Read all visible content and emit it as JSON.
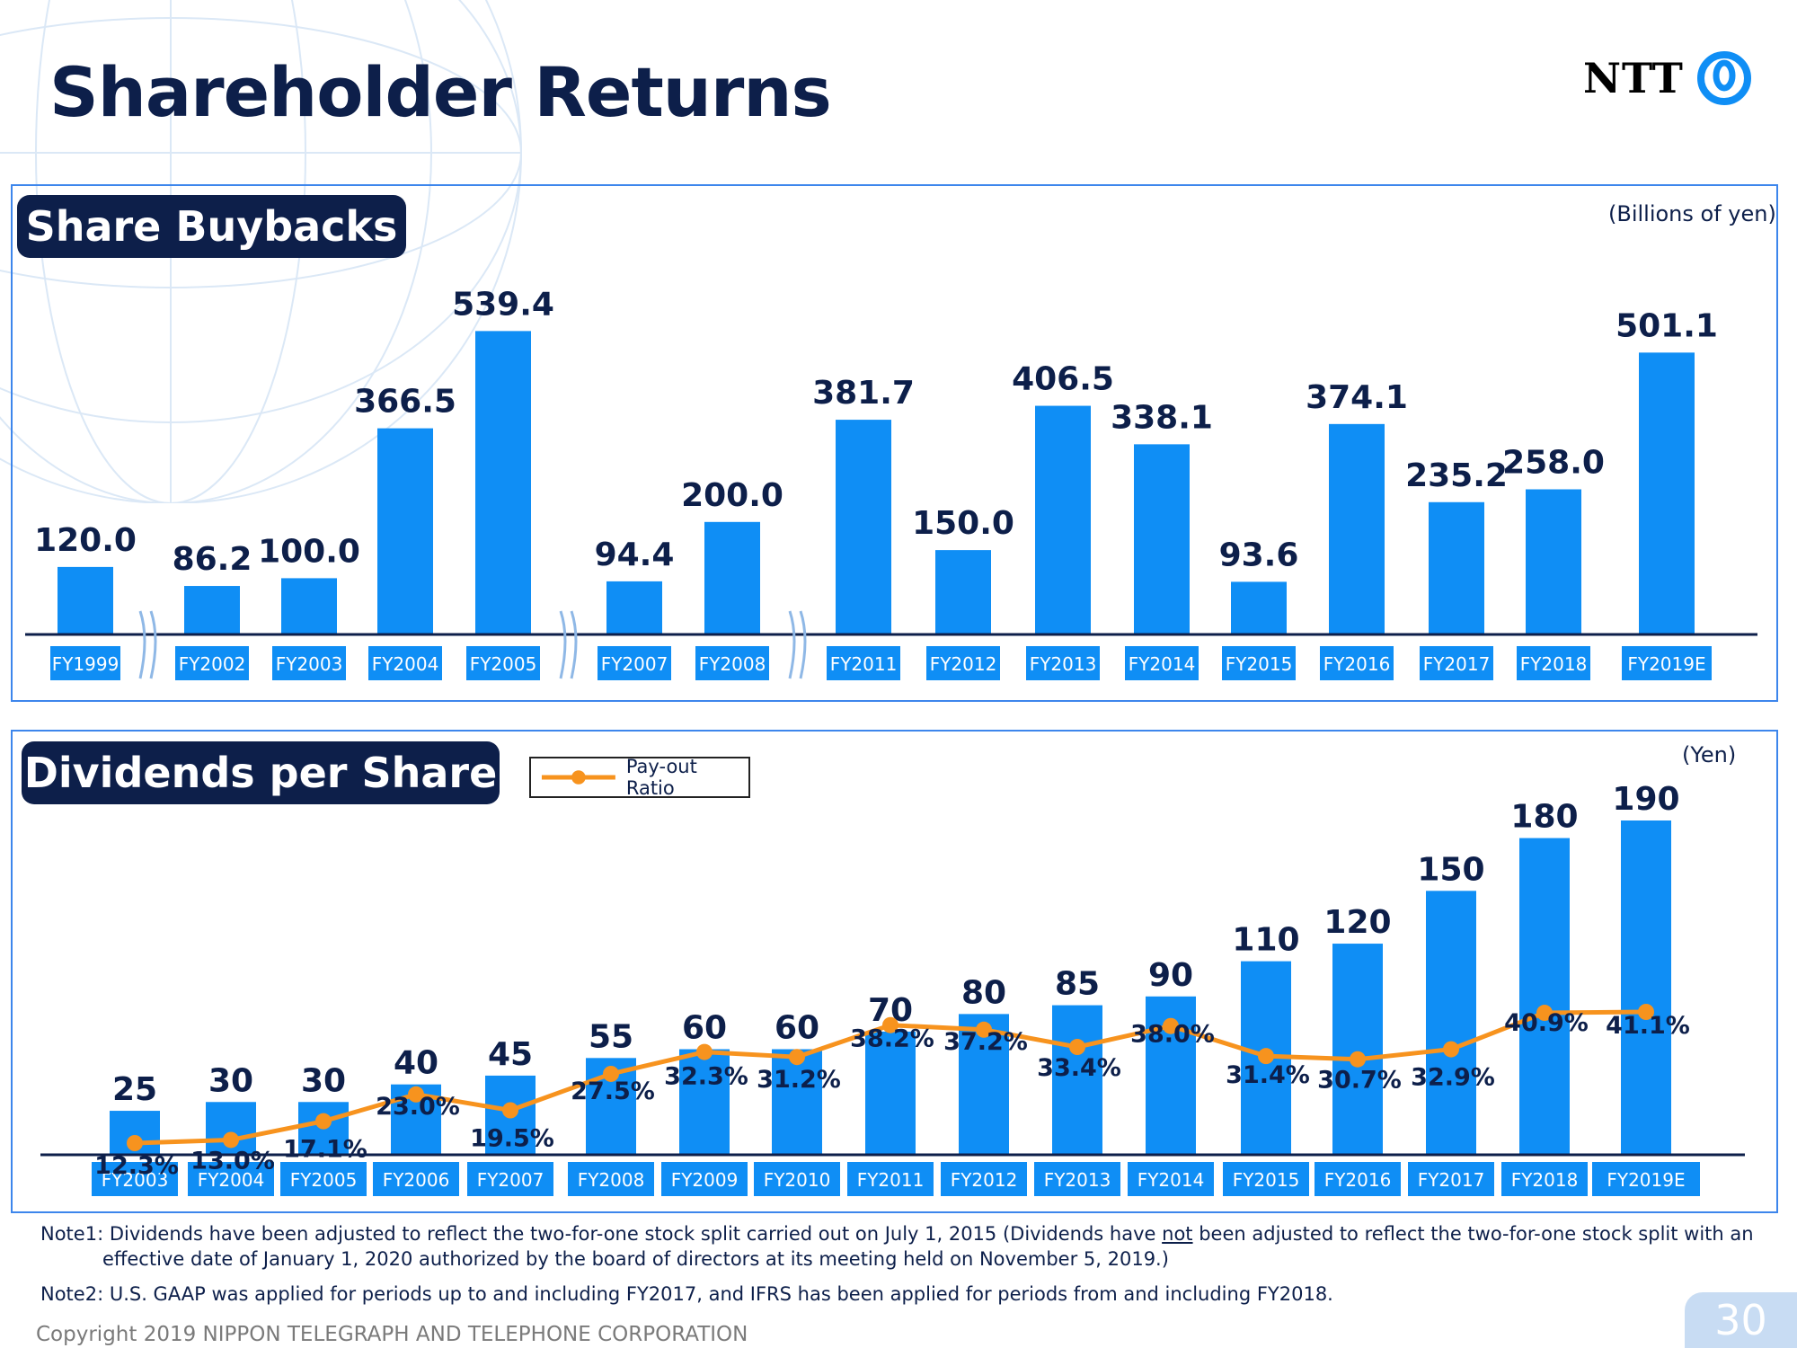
{
  "page": {
    "title": "Shareholder Returns",
    "logo_text": "NTT",
    "page_number": "30",
    "copyright": "Copyright 2019 NIPPON TELEGRAPH AND TELEPHONE CORPORATION"
  },
  "notes": {
    "note1_a": "Note1: Dividends have been adjusted to reflect the two-for-one stock split carried out on July 1, 2015  (Dividends have ",
    "note1_not": "not",
    "note1_b": " been adjusted to reflect the two-for-one stock split with an",
    "note1_c": "effective date of January 1, 2020 authorized by the board of directors at its meeting held on November 5, 2019.)",
    "note2": "Note2: U.S. GAAP was applied for periods up to and including FY2017, and IFRS has been applied for periods from and including FY2018."
  },
  "colors": {
    "bar": "#0f8ef5",
    "line": "#f7931e",
    "navy": "#0d1f4a",
    "border": "#3d86ec"
  },
  "chart_data": [
    {
      "type": "bar",
      "title": "Share Buybacks",
      "unit": "(Billions of yen)",
      "categories": [
        "FY1999",
        "FY2002",
        "FY2003",
        "FY2004",
        "FY2005",
        "FY2007",
        "FY2008",
        "FY2011",
        "FY2012",
        "FY2013",
        "FY2014",
        "FY2015",
        "FY2016",
        "FY2017",
        "FY2018",
        "FY2019E"
      ],
      "values": [
        120.0,
        86.2,
        100.0,
        366.5,
        539.4,
        94.4,
        200.0,
        381.7,
        150.0,
        406.5,
        338.1,
        93.6,
        374.1,
        235.2,
        258.0,
        501.1
      ],
      "value_labels": [
        "120.0",
        "86.2",
        "100.0",
        "366.5",
        "539.4",
        "94.4",
        "200.0",
        "381.7",
        "150.0",
        "406.5",
        "338.1",
        "93.6",
        "374.1",
        "235.2",
        "258.0",
        "501.1"
      ],
      "axis_breaks_after": [
        "FY1999",
        "FY2005",
        "FY2008"
      ],
      "ylim": [
        0,
        540
      ]
    },
    {
      "type": "bar",
      "title": "Dividends per Share",
      "unit": "(Yen)",
      "categories": [
        "FY2003",
        "FY2004",
        "FY2005",
        "FY2006",
        "FY2007",
        "FY2008",
        "FY2009",
        "FY2010",
        "FY2011",
        "FY2012",
        "FY2013",
        "FY2014",
        "FY2015",
        "FY2016",
        "FY2017",
        "FY2018",
        "FY2019E"
      ],
      "values": [
        25,
        30,
        30,
        40,
        45,
        55,
        60,
        60,
        70,
        80,
        85,
        90,
        110,
        120,
        150,
        180,
        190
      ],
      "value_labels": [
        "25",
        "30",
        "30",
        "40",
        "45",
        "55",
        "60",
        "60",
        "70",
        "80",
        "85",
        "90",
        "110",
        "120",
        "150",
        "180",
        "190"
      ],
      "ylim": [
        0,
        190
      ],
      "line_series": {
        "name": "Pay-out Ratio",
        "values": [
          12.3,
          13.0,
          17.1,
          23.0,
          19.5,
          27.5,
          32.3,
          31.2,
          38.2,
          37.2,
          33.4,
          38.0,
          31.4,
          30.7,
          32.9,
          40.9,
          41.1
        ],
        "labels": [
          "12.3%",
          "13.0%",
          "17.1%",
          "23.0%",
          "19.5%",
          "27.5%",
          "32.3%",
          "31.2%",
          "38.2%",
          "37.2%",
          "33.4%",
          "38.0%",
          "31.4%",
          "30.7%",
          "32.9%",
          "40.9%",
          "41.1%"
        ]
      }
    }
  ]
}
